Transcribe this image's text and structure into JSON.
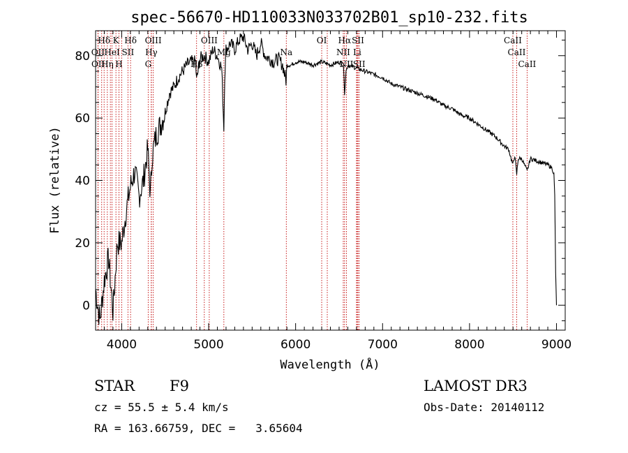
{
  "chart_data": {
    "type": "line",
    "title": "spec-56670-HD110033N033702B01_sp10-232.fits",
    "xlabel": "Wavelength (Å)",
    "ylabel": "Flux (relative)",
    "xlim": [
      3700,
      9100
    ],
    "ylim": [
      -8,
      88
    ],
    "x_ticks": [
      4000,
      5000,
      6000,
      7000,
      8000,
      9000
    ],
    "y_ticks": [
      0,
      20,
      40,
      60,
      80
    ],
    "series": [
      {
        "name": "flux",
        "x": [
          3700,
          3750,
          3800,
          3850,
          3900,
          3950,
          4000,
          4050,
          4100,
          4150,
          4200,
          4250,
          4300,
          4330,
          4350,
          4400,
          4450,
          4500,
          4550,
          4600,
          4650,
          4700,
          4750,
          4800,
          4850,
          4861,
          4900,
          4950,
          5000,
          5050,
          5100,
          5150,
          5175,
          5185,
          5200,
          5250,
          5300,
          5350,
          5400,
          5450,
          5500,
          5550,
          5600,
          5650,
          5700,
          5750,
          5800,
          5850,
          5890,
          5900,
          5950,
          6000,
          6100,
          6200,
          6300,
          6400,
          6500,
          6550,
          6563,
          6580,
          6600,
          6700,
          6800,
          6900,
          7000,
          7100,
          7200,
          7300,
          7400,
          7500,
          7600,
          7700,
          7800,
          7900,
          8000,
          8100,
          8200,
          8300,
          8400,
          8450,
          8498,
          8520,
          8542,
          8560,
          8600,
          8662,
          8700,
          8800,
          8900,
          8950,
          8970,
          8980,
          8990,
          9000
        ],
        "values": [
          5,
          -5,
          8,
          15,
          -2,
          20,
          20,
          30,
          38,
          43,
          35,
          40,
          50,
          35,
          48,
          55,
          58,
          62,
          68,
          70,
          73,
          75,
          77,
          78,
          78,
          72,
          79,
          80,
          78,
          82,
          80,
          76,
          57,
          74,
          82,
          84,
          82,
          85,
          86,
          82,
          84,
          80,
          84,
          80,
          79,
          78,
          79,
          77,
          72,
          77,
          77,
          78,
          78,
          77,
          78,
          77,
          78,
          77,
          68,
          75,
          77,
          76,
          75,
          74,
          73,
          71,
          70,
          69,
          68,
          67,
          66,
          64,
          63,
          61,
          60,
          58,
          56,
          54,
          51,
          50,
          45,
          48,
          42,
          47,
          47,
          43,
          47,
          46,
          45,
          44,
          42,
          35,
          10,
          0
        ]
      }
    ],
    "line_markers": [
      {
        "label": "Hδ",
        "x": 3798,
        "row": 0
      },
      {
        "label": "OII",
        "x": 3727,
        "row": 1
      },
      {
        "label": "OII",
        "x": 3729,
        "row": 2
      },
      {
        "label": "Hη",
        "x": 3835,
        "row": 2
      },
      {
        "label": "HeI",
        "x": 3889,
        "row": 1
      },
      {
        "label": "K",
        "x": 3934,
        "row": 0
      },
      {
        "label": "H",
        "x": 3969,
        "row": 2
      },
      {
        "label": "SII",
        "x": 4072,
        "row": 1
      },
      {
        "label": "Hδ",
        "x": 4102,
        "row": 0
      },
      {
        "label": "OIII",
        "x": 4363,
        "row": 0
      },
      {
        "label": "Hγ",
        "x": 4341,
        "row": 1
      },
      {
        "label": "G",
        "x": 4305,
        "row": 2
      },
      {
        "label": "Hβ",
        "x": 4861,
        "row": 2
      },
      {
        "label": "OIII",
        "x": 5007,
        "row": 0
      },
      {
        "label": "Mg",
        "x": 5175,
        "row": 1
      },
      {
        "label": "Na",
        "x": 5893,
        "row": 1
      },
      {
        "label": "OI",
        "x": 6300,
        "row": 0
      },
      {
        "label": "Hα",
        "x": 6563,
        "row": 0
      },
      {
        "label": "NII",
        "x": 6548,
        "row": 1
      },
      {
        "label": "NII",
        "x": 6584,
        "row": 2
      },
      {
        "label": "SII",
        "x": 6717,
        "row": 0
      },
      {
        "label": "Li",
        "x": 6708,
        "row": 1
      },
      {
        "label": "SII",
        "x": 6731,
        "row": 2
      },
      {
        "label": "CaII",
        "x": 8498,
        "row": 0
      },
      {
        "label": "CaII",
        "x": 8542,
        "row": 1
      },
      {
        "label": "CaII",
        "x": 8662,
        "row": 2
      }
    ],
    "extra_marker_lines": [
      3770,
      3870,
      4000,
      4340,
      4950,
      6364,
      6700
    ]
  },
  "info": {
    "class": "STAR",
    "subclass": "F9",
    "survey": "LAMOST DR3",
    "cz": "cz = 55.5 ± 5.4 km/s",
    "obsdate": "Obs-Date: 20140112",
    "radec": "RA = 163.66759, DEC =   3.65604"
  },
  "colors": {
    "axis": "#000000",
    "spectrum": "#000000",
    "marker": "#c00000"
  }
}
